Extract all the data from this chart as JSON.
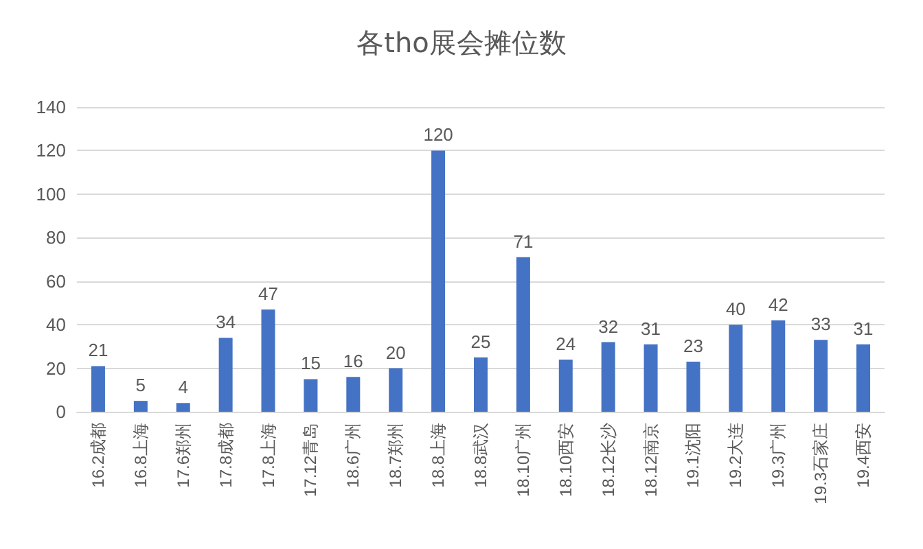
{
  "chart_data": {
    "type": "bar",
    "title": "各tho展会摊位数",
    "categories": [
      "16.2成都",
      "16.8上海",
      "17.6郑州",
      "17.8成都",
      "17.8上海",
      "17.12青岛",
      "18.6广州",
      "18.7郑州",
      "18.8上海",
      "18.8武汉",
      "18.10广州",
      "18.10西安",
      "18.12长沙",
      "18.12南京",
      "19.1沈阳",
      "19.2大连",
      "19.3广州",
      "19.3石家庄",
      "19.4西安"
    ],
    "values": [
      21,
      5,
      4,
      34,
      47,
      15,
      16,
      20,
      120,
      25,
      71,
      24,
      32,
      31,
      23,
      40,
      42,
      33,
      31
    ],
    "color": "#4472c4",
    "ylim": [
      0,
      140
    ],
    "yticks": [
      0,
      20,
      40,
      60,
      80,
      100,
      120,
      140
    ],
    "grid": "y",
    "data_labels": true
  }
}
